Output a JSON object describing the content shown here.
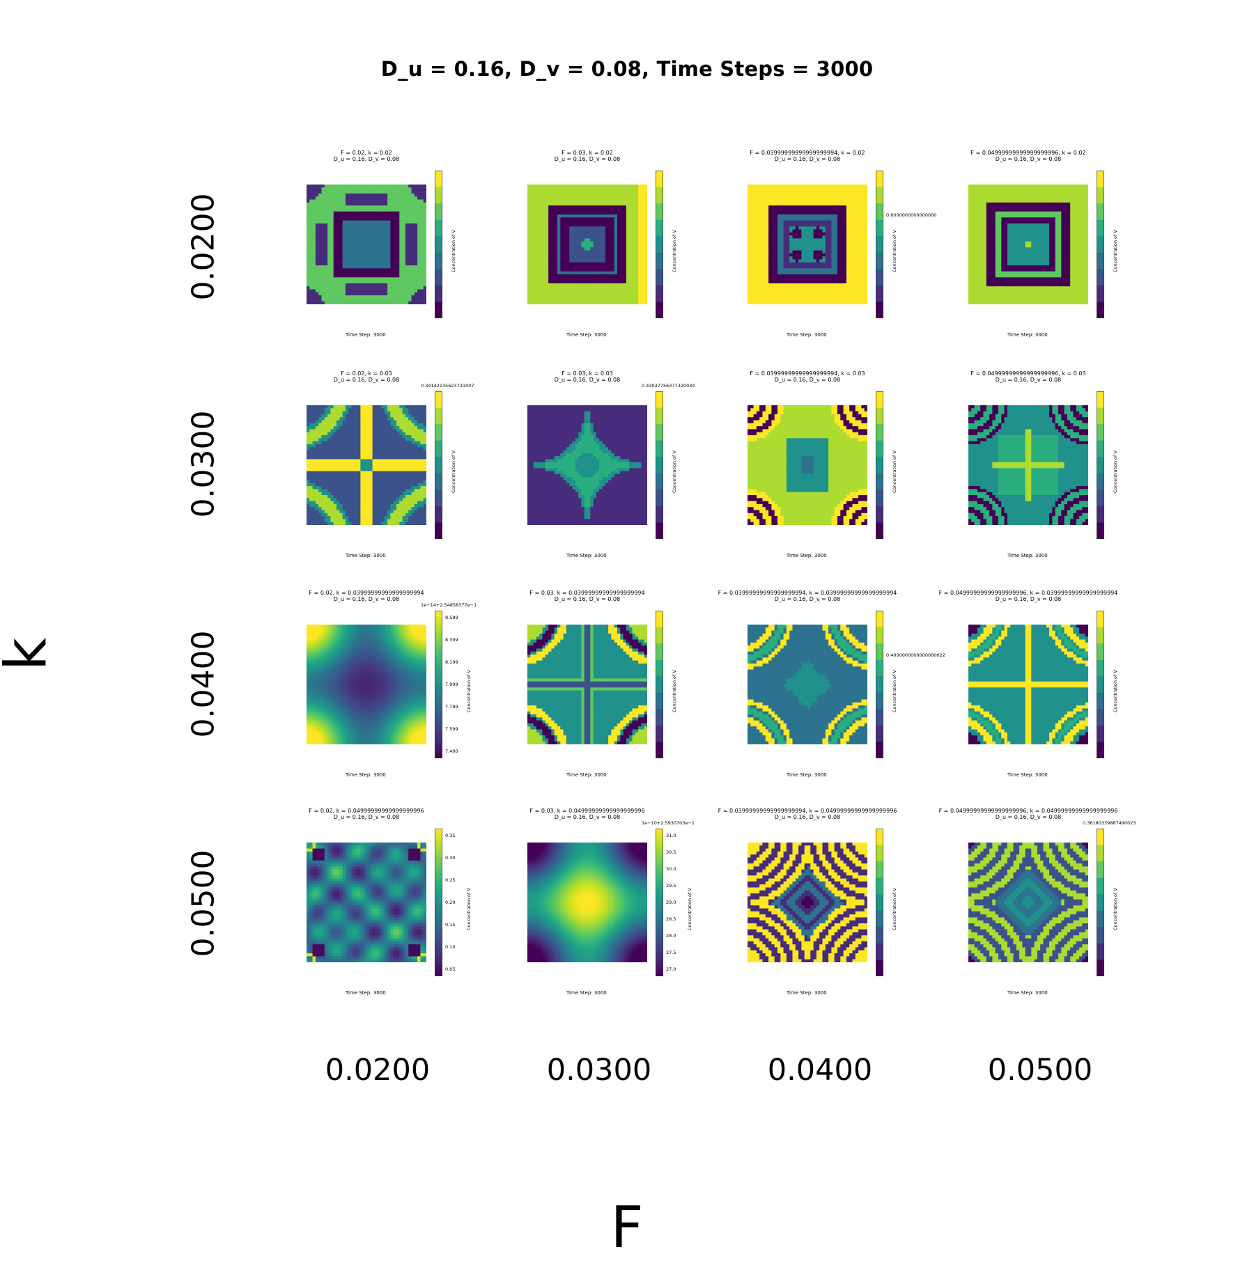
{
  "chart_data": {
    "type": "heatmap",
    "title": "D_u = 0.16, D_v = 0.08, Time Steps = 3000",
    "xlabel": "F",
    "ylabel": "k",
    "x_ticks": [
      "0.0200",
      "0.0300",
      "0.0400",
      "0.0500"
    ],
    "y_ticks": [
      "0.0200",
      "0.0300",
      "0.0400",
      "0.0500"
    ],
    "colormap": "viridis",
    "colorbar_label": "Concentration of V",
    "time_label": "Time Step: 3000",
    "panels": [
      {
        "row": 0,
        "col": 0,
        "title1": "F = 0.02, k = 0.02",
        "title2": "D_u = 0.16, D_v = 0.08",
        "pattern": "grid_squares",
        "ticks": [],
        "offset": ""
      },
      {
        "row": 0,
        "col": 1,
        "title1": "F = 0.03, k = 0.02",
        "title2": "D_u = 0.16, D_v = 0.08",
        "pattern": "square_ring",
        "ticks": [],
        "offset": ""
      },
      {
        "row": 0,
        "col": 2,
        "title1": "F = 0.03999999999999999994, k = 0.02",
        "title2": "D_u = 0.16, D_v = 0.08",
        "pattern": "square_ring_yellow",
        "ticks": [
          "0.6000000000000000"
        ],
        "offset": ""
      },
      {
        "row": 0,
        "col": 3,
        "title1": "F = 0.04999999999999999996, k = 0.02",
        "title2": "D_u = 0.16, D_v = 0.08",
        "pattern": "square_ring_dark",
        "ticks": [],
        "offset": ""
      },
      {
        "row": 1,
        "col": 0,
        "title1": "F = 0.02, k = 0.03",
        "title2": "D_u = 0.16, D_v = 0.08",
        "pattern": "arcs_cross",
        "ticks": [],
        "offset": "0.34142135623731007"
      },
      {
        "row": 1,
        "col": 1,
        "title1": "F = 0.03, k = 0.03",
        "title2": "D_u = 0.16, D_v = 0.08",
        "pattern": "star_dark",
        "ticks": [],
        "offset": "0.43027756377320034"
      },
      {
        "row": 1,
        "col": 2,
        "title1": "F = 0.03999999999999999994, k = 0.03",
        "title2": "D_u = 0.16, D_v = 0.08",
        "pattern": "corner_rings_light",
        "ticks": [],
        "offset": ""
      },
      {
        "row": 1,
        "col": 3,
        "title1": "F = 0.04999999999999999996, k = 0.03",
        "title2": "D_u = 0.16, D_v = 0.08",
        "pattern": "corner_rings_dark",
        "ticks": [],
        "offset": ""
      },
      {
        "row": 2,
        "col": 0,
        "title1": "F = 0.02, k = 0.03999999999999999994",
        "title2": "D_u = 0.16, D_v = 0.08",
        "pattern": "smooth_corners",
        "ticks": [
          "8.599",
          "8.399",
          "8.199",
          "7.999",
          "7.799",
          "7.599",
          "7.400"
        ],
        "offset": "1e−14+2.54858377e−1"
      },
      {
        "row": 2,
        "col": 1,
        "title1": "F = 0.03, k = 0.03999999999999999994",
        "title2": "D_u = 0.16, D_v = 0.08",
        "pattern": "arcs_cross_b",
        "ticks": [],
        "offset": ""
      },
      {
        "row": 2,
        "col": 2,
        "title1": "F = 0.03999999999999999994, k = 0.03999999999999999994",
        "title2": "D_u = 0.16, D_v = 0.08",
        "pattern": "arcs_cross_c",
        "ticks": [
          "0.4000000000000000022"
        ],
        "offset": ""
      },
      {
        "row": 2,
        "col": 3,
        "title1": "F = 0.04999999999999999996, k = 0.03999999999999999994",
        "title2": "D_u = 0.16, D_v = 0.08",
        "pattern": "arcs_cross_d",
        "ticks": [],
        "offset": ""
      },
      {
        "row": 3,
        "col": 0,
        "title1": "F = 0.02, k = 0.04999999999999999996",
        "title2": "D_u = 0.16, D_v = 0.08",
        "pattern": "spots",
        "ticks": [
          "0.35",
          "0.30",
          "0.25",
          "0.20",
          "0.15",
          "0.10",
          "0.05"
        ],
        "offset": ""
      },
      {
        "row": 3,
        "col": 1,
        "title1": "F = 0.03, k = 0.04999999999999999996",
        "title2": "D_u = 0.16, D_v = 0.08",
        "pattern": "smooth_center",
        "ticks": [
          "31.0",
          "30.5",
          "30.0",
          "29.5",
          "29.0",
          "28.5",
          "28.0",
          "27.5",
          "27.0"
        ],
        "offset": "1e−10+2.5930703e−1"
      },
      {
        "row": 3,
        "col": 2,
        "title1": "F = 0.03999999999999999994, k = 0.04999999999999999996",
        "title2": "D_u = 0.16, D_v = 0.08",
        "pattern": "rings_diamond",
        "ticks": [],
        "offset": ""
      },
      {
        "row": 3,
        "col": 3,
        "title1": "F = 0.04999999999999999996, k = 0.04999999999999999996",
        "title2": "D_u = 0.16, D_v = 0.08",
        "pattern": "rings_diamond_b",
        "ticks": [],
        "offset": "0.36180339887490023"
      }
    ]
  }
}
